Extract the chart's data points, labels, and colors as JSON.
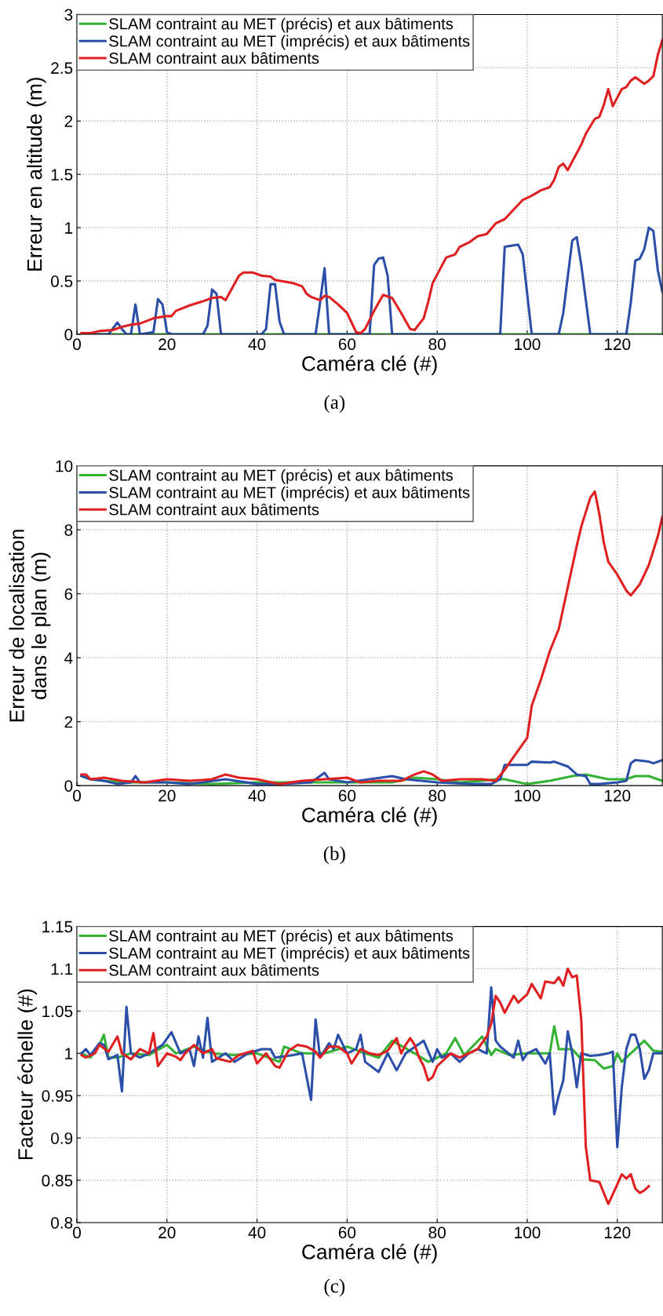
{
  "chart_data": [
    {
      "type": "line",
      "xlabel": "Caméra clé (#)",
      "ylabel": "Erreur en altitude (m)",
      "annotations": [
        "(a)"
      ],
      "xlim": [
        0,
        130
      ],
      "ylim": [
        0,
        3
      ],
      "xticks": [
        0,
        20,
        40,
        60,
        80,
        100,
        120
      ],
      "yticks": [
        0,
        0.5,
        1,
        1.5,
        2,
        2.5,
        3
      ],
      "grid": true,
      "legend": "top left",
      "series": [
        {
          "name": "SLAM contraint au MET (précis) et aux bâtiments",
          "color": "#33b233",
          "x": [
            1,
            130
          ],
          "values": [
            0,
            0
          ]
        },
        {
          "name": "SLAM contraint au MET (imprécis) et aux bâtiments",
          "color": "#2b4fa8",
          "x": [
            1,
            7,
            9,
            10,
            11,
            12,
            13,
            14,
            17,
            18,
            19,
            20,
            21,
            28,
            29,
            30,
            31,
            32,
            41,
            42,
            43,
            44,
            45,
            46,
            53,
            54,
            55,
            56,
            65,
            66,
            67,
            68,
            69,
            70,
            94,
            95,
            98,
            99,
            101,
            107,
            108,
            110,
            111,
            112,
            114,
            122,
            123,
            124,
            125,
            126,
            127,
            128,
            129,
            130
          ],
          "values": [
            0,
            0,
            0.11,
            0.05,
            0,
            0,
            0.28,
            0,
            0.02,
            0.33,
            0.28,
            0.02,
            0,
            0,
            0.08,
            0.42,
            0.38,
            0,
            0,
            0.05,
            0.47,
            0.47,
            0.12,
            0,
            0,
            0.3,
            0.62,
            0,
            0,
            0.65,
            0.71,
            0.72,
            0.55,
            0,
            0,
            0.82,
            0.84,
            0.75,
            0,
            0,
            0.2,
            0.88,
            0.91,
            0.65,
            0,
            0,
            0.3,
            0.69,
            0.71,
            0.8,
            1.0,
            0.97,
            0.6,
            0.4
          ]
        },
        {
          "name": "SLAM contraint aux bâtiments",
          "color": "#e02020",
          "x": [
            1,
            3,
            4,
            5,
            8,
            10,
            12,
            14,
            17,
            20,
            21,
            22,
            25,
            28,
            30,
            32,
            33,
            36,
            37,
            39,
            41,
            43,
            44,
            48,
            50,
            51,
            52,
            54,
            55,
            56,
            58,
            60,
            62,
            63,
            64,
            66,
            68,
            70,
            72,
            74,
            75,
            77,
            78,
            79,
            80,
            82,
            84,
            85,
            87,
            89,
            91,
            93,
            95,
            97,
            99,
            101,
            103,
            105,
            106,
            107,
            108,
            109,
            110,
            112,
            113,
            115,
            116,
            117,
            118,
            119,
            120,
            121,
            122,
            123,
            124,
            126,
            127,
            128,
            129,
            130
          ],
          "values": [
            0.01,
            0.01,
            0.02,
            0.03,
            0.04,
            0.07,
            0.09,
            0.1,
            0.15,
            0.17,
            0.17,
            0.22,
            0.27,
            0.31,
            0.34,
            0.35,
            0.32,
            0.55,
            0.58,
            0.58,
            0.55,
            0.54,
            0.51,
            0.48,
            0.45,
            0.38,
            0.35,
            0.32,
            0.36,
            0.35,
            0.28,
            0.2,
            0.02,
            0.01,
            0.05,
            0.22,
            0.37,
            0.34,
            0.2,
            0.05,
            0.04,
            0.15,
            0.3,
            0.48,
            0.56,
            0.72,
            0.75,
            0.82,
            0.86,
            0.92,
            0.94,
            1.04,
            1.08,
            1.17,
            1.26,
            1.3,
            1.35,
            1.38,
            1.45,
            1.57,
            1.6,
            1.54,
            1.62,
            1.78,
            1.88,
            2.02,
            2.04,
            2.15,
            2.3,
            2.14,
            2.22,
            2.3,
            2.32,
            2.38,
            2.41,
            2.35,
            2.38,
            2.42,
            2.62,
            2.76
          ]
        }
      ]
    },
    {
      "type": "line",
      "xlabel": "Caméra clé (#)",
      "ylabel": "Erreur de localisation\ndans le plan (m)",
      "annotations": [
        "(b)"
      ],
      "xlim": [
        0,
        130
      ],
      "ylim": [
        0,
        10
      ],
      "xticks": [
        0,
        20,
        40,
        60,
        80,
        100,
        120
      ],
      "yticks": [
        0,
        2,
        4,
        6,
        8,
        10
      ],
      "grid": true,
      "legend": "top left",
      "series": [
        {
          "name": "SLAM contraint au MET (précis) et aux bâtiments",
          "color": "#33b233",
          "x": [
            1,
            3,
            6,
            10,
            20,
            30,
            40,
            50,
            60,
            70,
            75,
            80,
            85,
            90,
            93,
            95,
            100,
            105,
            110,
            113,
            118,
            122,
            124,
            127,
            130
          ],
          "values": [
            0.3,
            0.2,
            0.15,
            0.1,
            0.1,
            0.05,
            0.1,
            0.1,
            0.1,
            0.1,
            0.25,
            0.2,
            0.1,
            0.15,
            0.2,
            0.2,
            0.05,
            0.15,
            0.3,
            0.35,
            0.2,
            0.2,
            0.3,
            0.3,
            0.15
          ]
        },
        {
          "name": "SLAM contraint au MET (imprécis) et aux bâtiments",
          "color": "#2b4fa8",
          "x": [
            1,
            3,
            6,
            9,
            12,
            13,
            14,
            20,
            25,
            33,
            40,
            45,
            52,
            55,
            56,
            60,
            65,
            70,
            73,
            80,
            88,
            92,
            94,
            95,
            100,
            101,
            105,
            106,
            109,
            111,
            113,
            114,
            116,
            120,
            122,
            123,
            124,
            127,
            128,
            130
          ],
          "values": [
            0.3,
            0.2,
            0.15,
            0.05,
            0.1,
            0.3,
            0.1,
            0.1,
            0.05,
            0.2,
            0.05,
            0.05,
            0.1,
            0.4,
            0.2,
            0.1,
            0.2,
            0.3,
            0.2,
            0.1,
            0.05,
            0.05,
            0.2,
            0.65,
            0.65,
            0.75,
            0.72,
            0.75,
            0.6,
            0.35,
            0.3,
            0.05,
            0.05,
            0.1,
            0.15,
            0.7,
            0.8,
            0.75,
            0.7,
            0.8
          ]
        },
        {
          "name": "SLAM contraint aux bâtiments",
          "color": "#e02020",
          "x": [
            1,
            2,
            3,
            6,
            10,
            15,
            20,
            25,
            30,
            33,
            36,
            40,
            45,
            50,
            55,
            60,
            63,
            67,
            72,
            75,
            77,
            79,
            81,
            85,
            90,
            93,
            95,
            97,
            100,
            101,
            103,
            105,
            107,
            109,
            111,
            112,
            114,
            115,
            116,
            117,
            118,
            120,
            122,
            123,
            125,
            127,
            129,
            130
          ],
          "values": [
            0.35,
            0.35,
            0.2,
            0.25,
            0.15,
            0.1,
            0.2,
            0.15,
            0.2,
            0.35,
            0.25,
            0.2,
            0.05,
            0.15,
            0.2,
            0.25,
            0.1,
            0.15,
            0.15,
            0.35,
            0.45,
            0.35,
            0.15,
            0.2,
            0.2,
            0.15,
            0.5,
            0.9,
            1.5,
            2.5,
            3.3,
            4.2,
            4.9,
            6.2,
            7.5,
            8.1,
            9.0,
            9.2,
            8.5,
            7.6,
            7.0,
            6.6,
            6.1,
            5.95,
            6.3,
            6.9,
            7.8,
            8.4
          ]
        }
      ]
    },
    {
      "type": "line",
      "xlabel": "Caméra clé (#)",
      "ylabel": "Facteur échelle (#)",
      "annotations": [
        "(c)"
      ],
      "xlim": [
        0,
        130
      ],
      "ylim": [
        0.8,
        1.15
      ],
      "xticks": [
        0,
        20,
        40,
        60,
        80,
        100,
        120
      ],
      "yticks": [
        0.8,
        0.85,
        0.9,
        0.95,
        1,
        1.05,
        1.1,
        1.15
      ],
      "grid": true,
      "legend": "top left",
      "series": [
        {
          "name": "SLAM contraint au MET (précis) et aux bâtiments",
          "color": "#33b233",
          "x": [
            1,
            3,
            5,
            6,
            7,
            9,
            12,
            16,
            20,
            22,
            26,
            30,
            35,
            40,
            45,
            46,
            50,
            55,
            60,
            64,
            67,
            70,
            75,
            78,
            82,
            84,
            86,
            90,
            92,
            93,
            96,
            100,
            105,
            106,
            107,
            110,
            112,
            115,
            117,
            119,
            120,
            121,
            123,
            126,
            128,
            130
          ],
          "values": [
            1.0,
            0.995,
            1.01,
            1.022,
            0.995,
            0.995,
            1.0,
            0.998,
            1.01,
            1.0,
            1.008,
            1.0,
            0.998,
            1.0,
            0.99,
            1.008,
            1.0,
            1.0,
            1.008,
            1.0,
            0.995,
            1.015,
            1.0,
            0.99,
            1.0,
            1.018,
            0.998,
            1.02,
            0.998,
            1.005,
            0.998,
            1.0,
            1.0,
            1.032,
            1.005,
            1.005,
            0.993,
            0.992,
            0.982,
            0.985,
            1.0,
            0.99,
            1.0,
            1.015,
            1.003,
            1.002
          ]
        },
        {
          "name": "SLAM contraint au MET (imprécis) et aux bâtiments",
          "color": "#2b4fa8",
          "x": [
            1,
            2,
            3,
            5,
            6,
            7,
            9,
            10,
            11,
            12,
            14,
            16,
            19,
            21,
            23,
            25,
            26,
            27,
            28,
            29,
            30,
            33,
            35,
            38,
            41,
            43,
            44,
            48,
            50,
            52,
            53,
            54,
            56,
            57,
            58,
            60,
            62,
            63,
            64,
            67,
            69,
            71,
            73,
            77,
            79,
            80,
            81,
            83,
            85,
            87,
            89,
            91,
            92,
            93,
            94,
            97,
            98,
            99,
            100,
            102,
            104,
            105,
            106,
            107,
            108,
            109,
            110,
            111,
            112,
            114,
            116,
            118,
            119,
            120,
            121,
            122,
            123,
            124,
            125,
            126,
            127,
            128,
            130
          ],
          "values": [
            1.0,
            1.005,
            0.998,
            1.012,
            1.01,
            0.993,
            0.998,
            0.955,
            1.055,
            1.0,
            0.995,
            1.0,
            1.01,
            1.025,
            1.0,
            1.005,
            0.985,
            1.02,
            0.995,
            1.042,
            0.99,
            1.0,
            0.99,
            1.0,
            1.005,
            1.005,
            0.995,
            0.998,
            1.0,
            0.945,
            1.04,
            0.995,
            1.012,
            1.005,
            1.022,
            1.0,
            1.005,
            1.022,
            0.99,
            0.978,
            1.0,
            0.98,
            1.0,
            1.015,
            0.99,
            1.005,
            0.995,
            1.0,
            0.99,
            1.0,
            1.005,
            1.0,
            1.078,
            1.015,
            1.008,
            0.995,
            1.015,
            0.992,
            1.0,
            1.005,
            0.988,
            1.0,
            0.928,
            0.95,
            0.968,
            1.026,
            1.0,
            0.96,
            1.0,
            0.997,
            0.998,
            1.0,
            1.002,
            0.889,
            0.96,
            1.005,
            1.022,
            1.022,
            1.005,
            0.97,
            0.98,
            1.0,
            1.0
          ]
        },
        {
          "name": "SLAM contraint aux bâtiments",
          "color": "#e02020",
          "x": [
            1,
            2,
            4,
            5,
            7,
            9,
            10,
            12,
            14,
            16,
            17,
            18,
            20,
            22,
            23,
            24,
            26,
            28,
            30,
            31,
            34,
            36,
            39,
            40,
            42,
            44,
            45,
            47,
            49,
            51,
            53,
            54,
            56,
            58,
            60,
            61,
            63,
            65,
            67,
            69,
            71,
            72,
            73,
            74,
            75,
            76,
            77,
            78,
            79,
            80,
            83,
            85,
            87,
            89,
            91,
            92,
            93,
            94,
            95,
            97,
            98,
            100,
            101,
            103,
            104,
            106,
            107,
            108,
            109,
            110,
            111,
            112,
            113,
            114,
            116,
            117,
            118,
            120,
            121,
            122,
            123,
            124,
            125,
            126,
            127
          ],
          "values": [
            0.998,
            0.995,
            1.0,
            1.01,
            1.002,
            1.02,
            1.0,
            0.993,
            1.005,
            1.0,
            1.024,
            0.985,
            1.0,
            0.996,
            0.992,
            1.0,
            1.01,
            1.0,
            1.005,
            0.994,
            0.99,
            0.998,
            1.003,
            0.988,
            1.0,
            0.985,
            0.983,
            1.003,
            1.01,
            1.008,
            1.002,
            0.995,
            1.008,
            1.008,
            1.0,
            0.988,
            1.005,
            1.0,
            0.998,
            1.003,
            1.018,
            1.0,
            1.01,
            1.018,
            1.01,
            0.995,
            0.985,
            0.968,
            0.972,
            0.985,
            1.0,
            0.995,
            1.0,
            1.005,
            1.02,
            1.035,
            1.068,
            1.06,
            1.048,
            1.068,
            1.06,
            1.07,
            1.082,
            1.065,
            1.085,
            1.083,
            1.09,
            1.08,
            1.1,
            1.09,
            1.092,
            1.04,
            0.89,
            0.85,
            0.848,
            0.835,
            0.822,
            0.845,
            0.857,
            0.852,
            0.857,
            0.84,
            0.835,
            0.838,
            0.843
          ]
        }
      ]
    }
  ]
}
